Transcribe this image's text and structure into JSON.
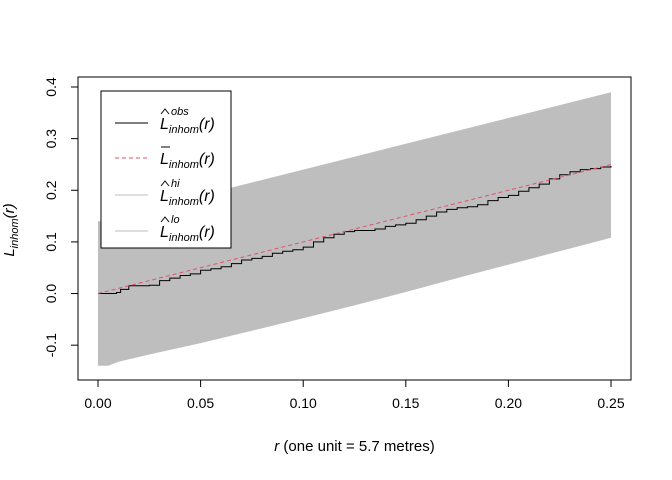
{
  "chart_data": {
    "type": "line",
    "title": "",
    "xlabel": {
      "var": "r",
      "rest": " (one unit = 5.7 metres)"
    },
    "ylabel": {
      "main": "L",
      "sub": "inhom",
      "arg": "(r)"
    },
    "xlim": [
      0,
      0.25
    ],
    "ylim": [
      -0.15,
      0.4
    ],
    "x_ticks": [
      {
        "value": 0.0,
        "label": "0.00"
      },
      {
        "value": 0.05,
        "label": "0.05"
      },
      {
        "value": 0.1,
        "label": "0.10"
      },
      {
        "value": 0.15,
        "label": "0.15"
      },
      {
        "value": 0.2,
        "label": "0.20"
      },
      {
        "value": 0.25,
        "label": "0.25"
      }
    ],
    "y_ticks": [
      {
        "value": -0.1,
        "label": "-0.1"
      },
      {
        "value": 0.0,
        "label": "0.0"
      },
      {
        "value": 0.1,
        "label": "0.1"
      },
      {
        "value": 0.2,
        "label": "0.2"
      },
      {
        "value": 0.3,
        "label": "0.3"
      },
      {
        "value": 0.4,
        "label": "0.4"
      }
    ],
    "grid": false,
    "legend_position": "top-left",
    "envelope": {
      "color": "#bebebe",
      "x": [
        0,
        0.005,
        0.01,
        0.025,
        0.05,
        0.075,
        0.1,
        0.125,
        0.15,
        0.175,
        0.2,
        0.225,
        0.25
      ],
      "hi": [
        0.14,
        0.142,
        0.15,
        0.165,
        0.19,
        0.215,
        0.24,
        0.265,
        0.29,
        0.315,
        0.34,
        0.365,
        0.39
      ],
      "lo": [
        -0.14,
        -0.14,
        -0.132,
        -0.118,
        -0.096,
        -0.072,
        -0.048,
        -0.023,
        0.003,
        0.03,
        0.056,
        0.082,
        0.108
      ]
    },
    "series": [
      {
        "id": "obs",
        "color": "#000000",
        "style": "step",
        "x": [
          0,
          0.009,
          0.011,
          0.015,
          0.025,
          0.03,
          0.035,
          0.04,
          0.045,
          0.05,
          0.055,
          0.06,
          0.065,
          0.07,
          0.075,
          0.08,
          0.085,
          0.09,
          0.095,
          0.1,
          0.105,
          0.11,
          0.115,
          0.12,
          0.125,
          0.13,
          0.135,
          0.14,
          0.145,
          0.15,
          0.155,
          0.16,
          0.165,
          0.17,
          0.175,
          0.18,
          0.185,
          0.19,
          0.195,
          0.2,
          0.205,
          0.21,
          0.215,
          0.22,
          0.225,
          0.23,
          0.235,
          0.24,
          0.245,
          0.25
        ],
        "y": [
          0.0,
          0.002,
          0.008,
          0.015,
          0.016,
          0.025,
          0.03,
          0.035,
          0.038,
          0.045,
          0.048,
          0.052,
          0.058,
          0.065,
          0.068,
          0.072,
          0.078,
          0.082,
          0.085,
          0.09,
          0.1,
          0.108,
          0.115,
          0.12,
          0.122,
          0.122,
          0.125,
          0.13,
          0.133,
          0.136,
          0.143,
          0.15,
          0.158,
          0.163,
          0.166,
          0.168,
          0.172,
          0.18,
          0.186,
          0.19,
          0.198,
          0.205,
          0.212,
          0.222,
          0.23,
          0.236,
          0.24,
          0.242,
          0.245,
          0.247
        ]
      },
      {
        "id": "theo",
        "color": "#df536b",
        "style": "dashed",
        "x": [
          0,
          0.25
        ],
        "y": [
          0,
          0.25
        ]
      }
    ],
    "legend": [
      {
        "main": "L",
        "accent": "hat",
        "sup": "obs",
        "sub": "inhom",
        "arg": "(r)",
        "color": "#000000",
        "dash": ""
      },
      {
        "main": "L",
        "accent": "bar",
        "sup": "",
        "sub": "inhom",
        "arg": "(r)",
        "color": "#df536b",
        "dash": "4 3"
      },
      {
        "main": "L",
        "accent": "hat",
        "sup": "hi",
        "sub": "inhom",
        "arg": "(r)",
        "color": "#bebebe",
        "dash": ""
      },
      {
        "main": "L",
        "accent": "hat",
        "sup": "lo",
        "sub": "inhom",
        "arg": "(r)",
        "color": "#bebebe",
        "dash": ""
      }
    ]
  }
}
